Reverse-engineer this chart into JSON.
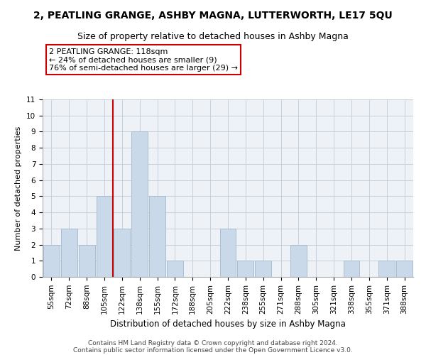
{
  "title": "2, PEATLING GRANGE, ASHBY MAGNA, LUTTERWORTH, LE17 5QU",
  "subtitle": "Size of property relative to detached houses in Ashby Magna",
  "xlabel": "Distribution of detached houses by size in Ashby Magna",
  "ylabel": "Number of detached properties",
  "categories": [
    "55sqm",
    "72sqm",
    "88sqm",
    "105sqm",
    "122sqm",
    "138sqm",
    "155sqm",
    "172sqm",
    "188sqm",
    "205sqm",
    "222sqm",
    "238sqm",
    "255sqm",
    "271sqm",
    "288sqm",
    "305sqm",
    "321sqm",
    "338sqm",
    "355sqm",
    "371sqm",
    "388sqm"
  ],
  "values": [
    2,
    3,
    2,
    5,
    3,
    9,
    5,
    1,
    0,
    0,
    3,
    1,
    1,
    0,
    2,
    0,
    0,
    1,
    0,
    1,
    1
  ],
  "bar_color": "#c9d9ea",
  "bar_edge_color": "#a8bfd0",
  "vline_color": "#cc0000",
  "annotation_text": "2 PEATLING GRANGE: 118sqm\n← 24% of detached houses are smaller (9)\n76% of semi-detached houses are larger (29) →",
  "annotation_box_color": "white",
  "annotation_box_edge": "#cc0000",
  "ylim": [
    0,
    11
  ],
  "footer_line1": "Contains HM Land Registry data © Crown copyright and database right 2024.",
  "footer_line2": "Contains public sector information licensed under the Open Government Licence v3.0.",
  "bg_color": "#eef2f7",
  "grid_color": "#c5d0dc",
  "title_fontsize": 10,
  "subtitle_fontsize": 9,
  "xlabel_fontsize": 8.5,
  "ylabel_fontsize": 8,
  "tick_fontsize": 7.5,
  "annot_fontsize": 8,
  "footer_fontsize": 6.5
}
